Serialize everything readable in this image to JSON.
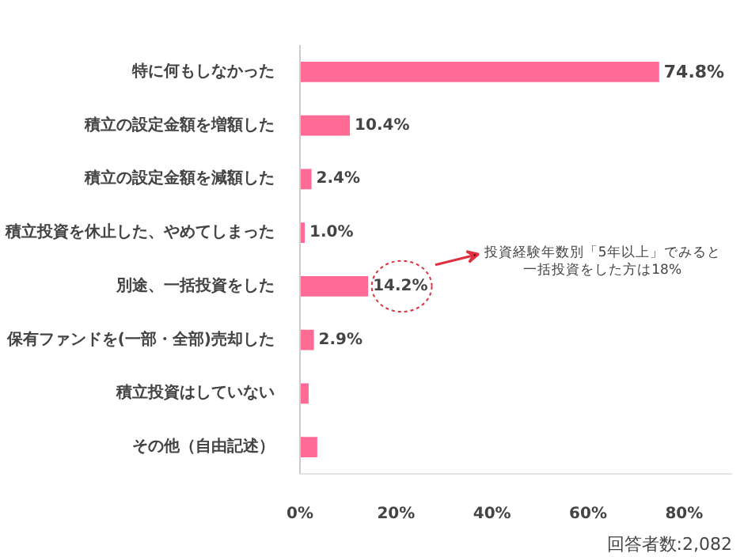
{
  "chart_data": {
    "type": "bar",
    "orientation": "horizontal",
    "categories": [
      "特に何もしなかった",
      "積立の設定金額を増額した",
      "積立の設定金額を減額した",
      "積立投資を休止した、やめてしまった",
      "別途、一括投資をした",
      "保有ファンドを(一部・全部)売却した",
      "積立投資はしていない",
      "その他（自由記述）"
    ],
    "values": [
      74.8,
      10.4,
      2.4,
      1.0,
      14.2,
      2.9,
      1.8,
      3.6
    ],
    "value_labels": [
      "74.8%",
      "10.4%",
      "2.4%",
      "1.0%",
      "14.2%",
      "2.9%",
      null,
      null
    ],
    "color": "#ff6b95",
    "xlim": [
      0,
      90
    ],
    "xticks": [
      {
        "value": 0,
        "label": "0%"
      },
      {
        "value": 20,
        "label": "20%"
      },
      {
        "value": 40,
        "label": "40%"
      },
      {
        "value": 60,
        "label": "60%"
      },
      {
        "value": 80,
        "label": "80%"
      }
    ],
    "grid": false,
    "annotations": [
      "投資経験年数別「5年以上」でみると",
      "一括投資をした方は18%",
      "回答者数:2,082"
    ]
  }
}
